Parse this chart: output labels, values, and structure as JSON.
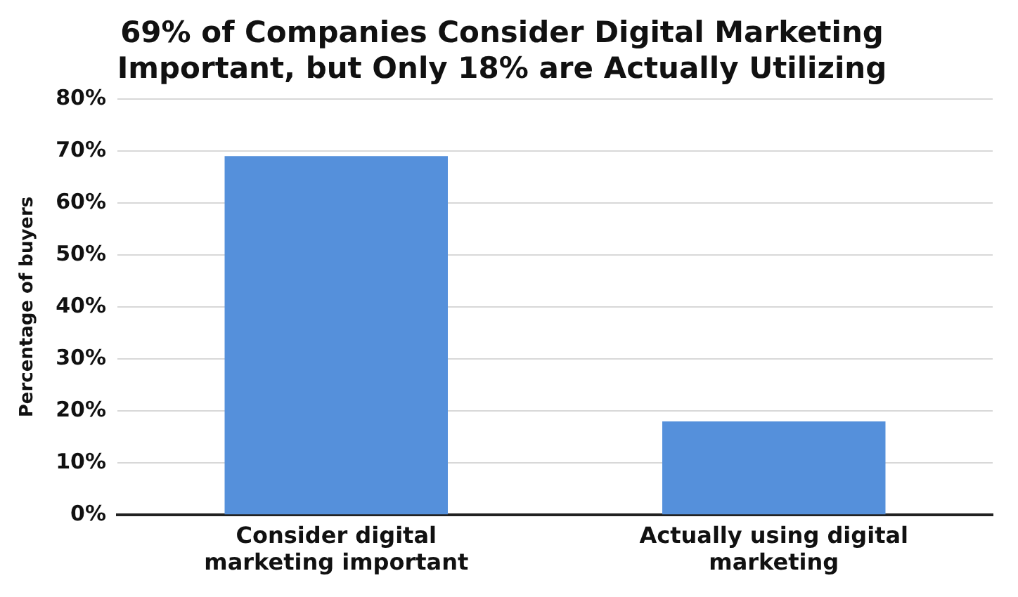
{
  "chart_data": {
    "type": "bar",
    "title": "69% of Companies Consider Digital Marketing Important, but Only 18% are Actually Utilizing",
    "ylabel": "Percentage of buyers",
    "categories": [
      "Consider digital marketing important",
      "Actually using digital marketing"
    ],
    "values": [
      69,
      18
    ],
    "color": "#5590db",
    "ylim": [
      0,
      80
    ],
    "yticks": [
      {
        "value": 0,
        "label": "0%"
      },
      {
        "value": 10,
        "label": "10%"
      },
      {
        "value": 20,
        "label": "20%"
      },
      {
        "value": 30,
        "label": "30%"
      },
      {
        "value": 40,
        "label": "40%"
      },
      {
        "value": 50,
        "label": "50%"
      },
      {
        "value": 60,
        "label": "60%"
      },
      {
        "value": 70,
        "label": "70%"
      },
      {
        "value": 80,
        "label": "80%"
      }
    ],
    "grid": "y",
    "legend": false
  }
}
